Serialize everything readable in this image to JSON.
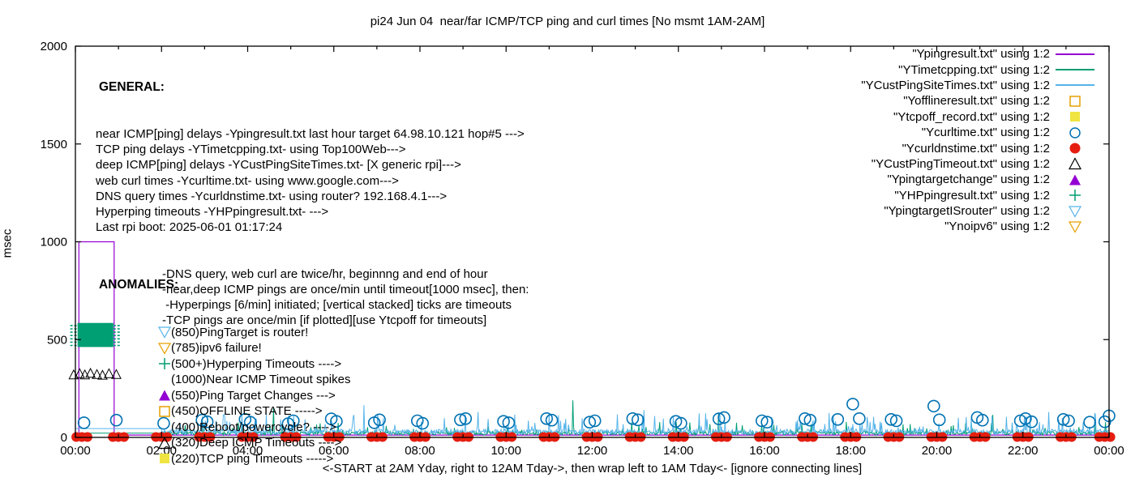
{
  "title": "pi24 Jun 04  near/far ICMP/TCP ping and curl times [No msmt 1AM-2AM]",
  "axes": {
    "ylabel": "msec",
    "xlabel": "<-START at 2AM Yday, right to 12AM Tday->, then wrap left to 1AM Tday<- [ignore connecting lines]",
    "yticks": [
      0,
      500,
      1000,
      1500,
      2000
    ],
    "xticks": [
      "00:00",
      "02:00",
      "04:00",
      "06:00",
      "08:00",
      "10:00",
      "12:00",
      "14:00",
      "16:00",
      "18:00",
      "20:00",
      "22:00",
      "00:00"
    ],
    "ylim": [
      0,
      2000
    ],
    "xlim_hours": [
      0,
      24
    ],
    "grid": false
  },
  "colors": {
    "purple": "#9400d3",
    "green": "#009e73",
    "skyblue": "#56b4e9",
    "orange": "#e69f00",
    "yellow": "#f0e442",
    "blue": "#0072b2",
    "red": "#e51e10",
    "black": "#000000"
  },
  "general": {
    "heading": "GENERAL:",
    "lines": [
      "near ICMP[ping] delays -Ypingresult.txt last hour target 64.98.10.121 hop#5 --->",
      "TCP ping delays -YTimetcpping.txt- using Top100Web--->",
      "deep ICMP[ping] delays -YCustPingSiteTimes.txt- [X generic rpi]--->",
      "web curl times -Ycurltime.txt- using www.google.com--->",
      "DNS query times -Ycurldnstime.txt- using router? 192.168.4.1--->",
      "Hyperping timeouts -YHPpingresult.txt- --->",
      "Last rpi boot: 2025-06-01 01:17:24"
    ],
    "notes": [
      "-DNS query, web curl are twice/hr, beginnng and end of hour",
      "-near,deep ICMP pings are once/min until timeout[1000 msec], then:",
      " -Hyperpings [6/min] initiated; [vertical stacked] ticks are timeouts",
      "-TCP pings are once/min [if plotted][use Ytcpoff for timeouts]"
    ]
  },
  "anomalies": {
    "heading": "ANOMALIES:",
    "items": [
      {
        "marker": "triangle-down-open",
        "color": "#56b4e9",
        "text": "(850)PingTarget is router!"
      },
      {
        "marker": "triangle-down-open",
        "color": "#e69f00",
        "text": "(785)ipv6 failure!"
      },
      {
        "marker": "plus",
        "color": "#009e73",
        "text": "(500+)Hyperping Timeouts ---->"
      },
      {
        "marker": "none",
        "color": "",
        "text": "(1000)Near ICMP Timeout spikes"
      },
      {
        "marker": "triangle-up-filled",
        "color": "#9400d3",
        "text": "(550)Ping Target Changes --->"
      },
      {
        "marker": "square-open",
        "color": "#e69f00",
        "text": "(450)OFFLINE STATE ----->"
      },
      {
        "marker": "none",
        "color": "",
        "text": "(400)Reboot/powercycle? ---->"
      },
      {
        "marker": "triangle-up-open",
        "color": "#000000",
        "text": "(320)Deep ICMP Timeouts ---->"
      },
      {
        "marker": "square-filled",
        "color": "#f0e442",
        "text": "(220)TCP ping Timeouts ----->"
      }
    ]
  },
  "legend": [
    {
      "label": "\"Ypingresult.txt\" using 1:2",
      "marker": "line",
      "color": "#9400d3"
    },
    {
      "label": "\"YTimetcpping.txt\" using 1:2",
      "marker": "line",
      "color": "#009e73"
    },
    {
      "label": "\"YCustPingSiteTimes.txt\" using 1:2",
      "marker": "line",
      "color": "#56b4e9"
    },
    {
      "label": "\"Yofflineresult.txt\" using 1:2",
      "marker": "square-open",
      "color": "#e69f00"
    },
    {
      "label": "\"Ytcpoff_record.txt\" using 1:2",
      "marker": "square-filled",
      "color": "#f0e442"
    },
    {
      "label": "\"Ycurltime.txt\" using 1:2",
      "marker": "circle-open",
      "color": "#0072b2"
    },
    {
      "label": "\"Ycurldnstime.txt\" using 1:2",
      "marker": "circle-filled",
      "color": "#e51e10"
    },
    {
      "label": "\"YCustPingTimeout.txt\" using 1:2",
      "marker": "triangle-up-open",
      "color": "#000000"
    },
    {
      "label": "\"Ypingtargetchange\" using 1:2",
      "marker": "triangle-up-filled",
      "color": "#9400d3"
    },
    {
      "label": "\"YHPpingresult.txt\" using 1:2",
      "marker": "plus",
      "color": "#009e73"
    },
    {
      "label": "\"YpingtargetISrouter\" using 1:2",
      "marker": "triangle-down-open",
      "color": "#56b4e9"
    },
    {
      "label": "\"Ynoipv6\" using 1:2",
      "marker": "triangle-down-open",
      "color": "#e69f00"
    }
  ],
  "chart_data": {
    "type": "line",
    "title": "pi24 Jun 04  near/far ICMP/TCP ping and curl times [No msmt 1AM-2AM]",
    "x_unit": "hours_since_midnight",
    "y_unit": "msec",
    "x_range": [
      0,
      24
    ],
    "y_range": [
      0,
      2000
    ],
    "legend_position": "top-right-inside",
    "series": [
      {
        "id": "near-icmp",
        "file": "Ypingresult.txt",
        "style": "line",
        "color": "#9400d3",
        "points": [
          [
            0.08,
            0
          ],
          [
            0.08,
            1000
          ],
          [
            0.9,
            1000
          ],
          [
            0.9,
            12
          ],
          [
            24,
            12
          ]
        ]
      },
      {
        "id": "tcp-ping",
        "file": "YTimetcpping.txt",
        "style": "noise-line",
        "color": "#009e73",
        "segments": [
          {
            "t0": 0,
            "t1": 2,
            "flat": 22
          },
          {
            "t0": 2,
            "t1": 24,
            "noise": {
              "seed": 11,
              "step_min": 1,
              "base": 12,
              "span": 20,
              "spike_q": 0.94,
              "spike_gain": 800
            }
          }
        ],
        "spikes": [
          [
            4.6,
            150
          ],
          [
            11.55,
            190
          ],
          [
            14.93,
            125
          ],
          [
            21.3,
            115
          ]
        ]
      },
      {
        "id": "deep-icmp",
        "file": "YCustPingSiteTimes.txt",
        "style": "noise-line",
        "color": "#56b4e9",
        "segments": [
          {
            "t0": 0,
            "t1": 2,
            "flat": 45
          },
          {
            "t0": 2,
            "t1": 24,
            "noise": {
              "seed": 3,
              "step_min": 1,
              "base": 15,
              "span": 30,
              "spike_q": 0.9,
              "spike_gain": 800
            }
          }
        ],
        "spikes": [
          [
            6.7,
            165
          ],
          [
            9.35,
            130
          ],
          [
            13.2,
            140
          ],
          [
            17.5,
            125
          ],
          [
            22.6,
            130
          ]
        ]
      },
      {
        "id": "hyperping-timeouts",
        "file": "YHPpingresult.txt",
        "style": "block-with-ticks",
        "color": "#009e73",
        "block": {
          "t0": 0.05,
          "t1": 0.88,
          "v0": 462,
          "v1": 585
        },
        "tick_rows": [
          470,
          487,
          504,
          521,
          538,
          555,
          572
        ],
        "tick_spans": [
          [
            -0.12,
            0.05
          ],
          [
            0.88,
            1.06
          ]
        ]
      },
      {
        "id": "deep-icmp-timeouts",
        "file": "YCustPingTimeout.txt",
        "style": "triangles-open",
        "color": "#000000",
        "marker_px": 9,
        "points": [
          [
            -0.04,
            318
          ],
          [
            0.1,
            324
          ],
          [
            0.22,
            318
          ],
          [
            0.35,
            326
          ],
          [
            0.5,
            320
          ],
          [
            0.63,
            316
          ],
          [
            0.78,
            324
          ],
          [
            0.95,
            320
          ]
        ]
      },
      {
        "id": "web-curl",
        "file": "Ycurltime.txt",
        "style": "circles-open",
        "color": "#0072b2",
        "marker_px": 7,
        "points": [
          [
            0.2,
            75
          ],
          [
            0.95,
            88
          ],
          [
            2.05,
            72
          ],
          [
            2.94,
            88
          ],
          [
            3.06,
            80
          ],
          [
            3.94,
            92
          ],
          [
            4.06,
            78
          ],
          [
            4.94,
            70
          ],
          [
            5.06,
            85
          ],
          [
            5.94,
            95
          ],
          [
            6.06,
            82
          ],
          [
            6.94,
            75
          ],
          [
            7.06,
            90
          ],
          [
            7.94,
            85
          ],
          [
            8.06,
            72
          ],
          [
            8.94,
            90
          ],
          [
            9.06,
            96
          ],
          [
            9.94,
            82
          ],
          [
            10.06,
            75
          ],
          [
            10.94,
            96
          ],
          [
            11.06,
            88
          ],
          [
            11.94,
            78
          ],
          [
            12.06,
            85
          ],
          [
            12.94,
            96
          ],
          [
            13.06,
            90
          ],
          [
            13.94,
            82
          ],
          [
            14.06,
            72
          ],
          [
            14.94,
            95
          ],
          [
            15.06,
            102
          ],
          [
            15.94,
            85
          ],
          [
            16.06,
            78
          ],
          [
            16.94,
            96
          ],
          [
            17.06,
            88
          ],
          [
            17.7,
            92
          ],
          [
            18.05,
            170
          ],
          [
            18.2,
            96
          ],
          [
            18.94,
            92
          ],
          [
            19.06,
            85
          ],
          [
            19.93,
            160
          ],
          [
            20.06,
            90
          ],
          [
            20.94,
            102
          ],
          [
            21.06,
            88
          ],
          [
            21.94,
            85
          ],
          [
            22.06,
            96
          ],
          [
            22.2,
            80
          ],
          [
            22.94,
            92
          ],
          [
            23.06,
            85
          ],
          [
            23.55,
            78
          ],
          [
            23.9,
            80
          ],
          [
            24,
            110
          ]
        ]
      },
      {
        "id": "dns-query",
        "file": "Ycurldnstime.txt",
        "style": "dots-filled",
        "color": "#e51e10",
        "marker_px": 6,
        "value": 2,
        "cluster_offsets": [
          -0.13,
          0,
          0.13
        ],
        "times": [
          0.15,
          1,
          2,
          3,
          4,
          5,
          6,
          7,
          8,
          9,
          10,
          11,
          12,
          13,
          14,
          15,
          16,
          17,
          18,
          19,
          20,
          21,
          22,
          23,
          23.9
        ]
      }
    ]
  }
}
